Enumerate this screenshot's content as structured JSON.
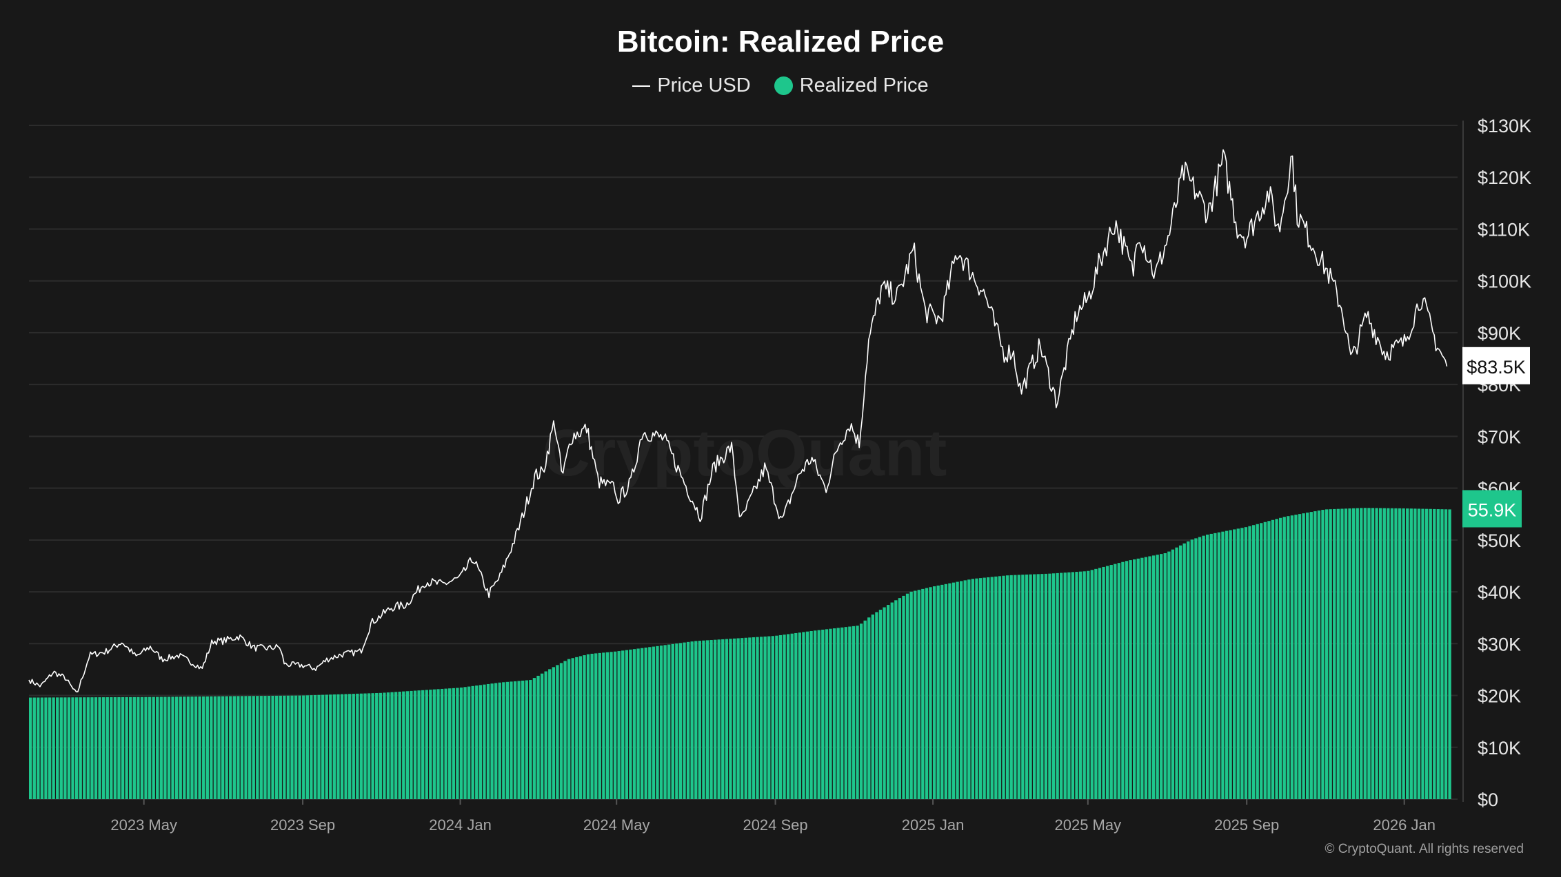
{
  "chart_data": {
    "type": "line",
    "title": "Bitcoin: Realized Price",
    "legend": [
      "Price USD",
      "Realized Price"
    ],
    "legend_position": "top-center",
    "grid": true,
    "y_axis_side": "right",
    "ylim": [
      0,
      130000
    ],
    "y_ticks": [
      "$0",
      "$10K",
      "$20K",
      "$30K",
      "$40K",
      "$50K",
      "$60K",
      "$70K",
      "$80K",
      "$90K",
      "$100K",
      "$110K",
      "$120K",
      "$130K"
    ],
    "x_ticks": [
      "2023 May",
      "2023 Sep",
      "2024 Jan",
      "2024 May",
      "2024 Sep",
      "2025 Jan",
      "2025 May",
      "2025 Sep",
      "2026 Jan"
    ],
    "x_tick_dates": [
      "2023-05-01",
      "2023-09-01",
      "2024-01-01",
      "2024-05-01",
      "2024-09-01",
      "2025-01-01",
      "2025-05-01",
      "2025-09-01",
      "2026-01-01"
    ],
    "x_range": [
      "2023-02-01",
      "2026-02-07"
    ],
    "series": [
      {
        "name": "Price USD",
        "kind": "line",
        "color": "#ffffff",
        "current_label": "$83.5K",
        "points": [
          [
            "2023-02-01",
            23000
          ],
          [
            "2023-02-10",
            21800
          ],
          [
            "2023-02-20",
            24500
          ],
          [
            "2023-03-01",
            23400
          ],
          [
            "2023-03-10",
            20200
          ],
          [
            "2023-03-20",
            27800
          ],
          [
            "2023-04-01",
            28400
          ],
          [
            "2023-04-14",
            30300
          ],
          [
            "2023-04-25",
            27500
          ],
          [
            "2023-05-06",
            29400
          ],
          [
            "2023-05-15",
            27000
          ],
          [
            "2023-05-28",
            27700
          ],
          [
            "2023-06-10",
            26000
          ],
          [
            "2023-06-15",
            25100
          ],
          [
            "2023-06-23",
            30500
          ],
          [
            "2023-07-01",
            30500
          ],
          [
            "2023-07-14",
            31400
          ],
          [
            "2023-07-25",
            29200
          ],
          [
            "2023-08-05",
            29100
          ],
          [
            "2023-08-14",
            29400
          ],
          [
            "2023-08-18",
            26000
          ],
          [
            "2023-09-01",
            25800
          ],
          [
            "2023-09-11",
            25200
          ],
          [
            "2023-09-20",
            27000
          ],
          [
            "2023-10-01",
            27900
          ],
          [
            "2023-10-16",
            28500
          ],
          [
            "2023-10-24",
            34000
          ],
          [
            "2023-11-09",
            37000
          ],
          [
            "2023-11-20",
            37500
          ],
          [
            "2023-12-05",
            42000
          ],
          [
            "2023-12-18",
            41400
          ],
          [
            "2024-01-01",
            42700
          ],
          [
            "2024-01-11",
            46500
          ],
          [
            "2024-01-23",
            39500
          ],
          [
            "2024-02-01",
            43000
          ],
          [
            "2024-02-15",
            52000
          ],
          [
            "2024-02-28",
            62500
          ],
          [
            "2024-03-05",
            63000
          ],
          [
            "2024-03-14",
            73000
          ],
          [
            "2024-03-20",
            62000
          ],
          [
            "2024-03-27",
            70000
          ],
          [
            "2024-04-08",
            71500
          ],
          [
            "2024-04-17",
            61200
          ],
          [
            "2024-04-30",
            60000
          ],
          [
            "2024-05-01",
            57500
          ],
          [
            "2024-05-12",
            61000
          ],
          [
            "2024-05-21",
            71000
          ],
          [
            "2024-06-07",
            69500
          ],
          [
            "2024-06-24",
            60300
          ],
          [
            "2024-07-05",
            54500
          ],
          [
            "2024-07-15",
            64000
          ],
          [
            "2024-07-29",
            68000
          ],
          [
            "2024-08-05",
            53500
          ],
          [
            "2024-08-24",
            64000
          ],
          [
            "2024-09-06",
            53500
          ],
          [
            "2024-09-20",
            63000
          ],
          [
            "2024-09-29",
            65800
          ],
          [
            "2024-10-10",
            59800
          ],
          [
            "2024-10-20",
            68500
          ],
          [
            "2024-10-29",
            72500
          ],
          [
            "2024-11-05",
            68500
          ],
          [
            "2024-11-12",
            88000
          ],
          [
            "2024-11-22",
            98500
          ],
          [
            "2024-12-05",
            97000
          ],
          [
            "2024-12-17",
            106000
          ],
          [
            "2024-12-26",
            94000
          ],
          [
            "2025-01-07",
            92500
          ],
          [
            "2025-01-20",
            106000
          ],
          [
            "2025-02-01",
            101000
          ],
          [
            "2025-02-10",
            97500
          ],
          [
            "2025-02-25",
            86000
          ],
          [
            "2025-03-04",
            86500
          ],
          [
            "2025-03-10",
            78500
          ],
          [
            "2025-03-25",
            87500
          ],
          [
            "2025-04-07",
            76500
          ],
          [
            "2025-04-22",
            93500
          ],
          [
            "2025-05-01",
            96500
          ],
          [
            "2025-05-10",
            103500
          ],
          [
            "2025-05-22",
            111500
          ],
          [
            "2025-06-05",
            101500
          ],
          [
            "2025-06-09",
            110000
          ],
          [
            "2025-06-22",
            101000
          ],
          [
            "2025-07-03",
            109000
          ],
          [
            "2025-07-14",
            121000
          ],
          [
            "2025-07-24",
            117000
          ],
          [
            "2025-08-02",
            113000
          ],
          [
            "2025-08-14",
            123500
          ],
          [
            "2025-08-25",
            110000
          ],
          [
            "2025-09-01",
            108500
          ],
          [
            "2025-09-18",
            117000
          ],
          [
            "2025-09-26",
            109500
          ],
          [
            "2025-10-06",
            124500
          ],
          [
            "2025-10-10",
            113000
          ],
          [
            "2025-10-20",
            108000
          ],
          [
            "2025-11-04",
            101000
          ],
          [
            "2025-11-14",
            94500
          ],
          [
            "2025-11-21",
            84500
          ],
          [
            "2025-12-03",
            93500
          ],
          [
            "2025-12-17",
            86000
          ],
          [
            "2026-01-01",
            88000
          ],
          [
            "2026-01-14",
            97000
          ],
          [
            "2026-01-25",
            88500
          ],
          [
            "2026-02-03",
            83500
          ]
        ]
      },
      {
        "name": "Realized Price",
        "kind": "bars",
        "color": "#1ec68c",
        "current_label": "55.9K",
        "points": [
          [
            "2023-02-01",
            19600
          ],
          [
            "2023-05-01",
            19700
          ],
          [
            "2023-09-01",
            20000
          ],
          [
            "2023-11-01",
            20500
          ],
          [
            "2024-01-01",
            21500
          ],
          [
            "2024-02-01",
            22500
          ],
          [
            "2024-02-25",
            23000
          ],
          [
            "2024-03-10",
            25000
          ],
          [
            "2024-03-25",
            27000
          ],
          [
            "2024-04-10",
            28000
          ],
          [
            "2024-05-01",
            28500
          ],
          [
            "2024-06-01",
            29500
          ],
          [
            "2024-07-01",
            30500
          ],
          [
            "2024-08-01",
            31000
          ],
          [
            "2024-09-01",
            31500
          ],
          [
            "2024-10-01",
            32500
          ],
          [
            "2024-11-05",
            33500
          ],
          [
            "2024-11-15",
            35500
          ],
          [
            "2024-12-01",
            38000
          ],
          [
            "2024-12-15",
            40000
          ],
          [
            "2025-01-01",
            41000
          ],
          [
            "2025-02-01",
            42500
          ],
          [
            "2025-03-01",
            43200
          ],
          [
            "2025-04-01",
            43500
          ],
          [
            "2025-05-01",
            44000
          ],
          [
            "2025-06-01",
            46000
          ],
          [
            "2025-07-01",
            47500
          ],
          [
            "2025-07-20",
            50000
          ],
          [
            "2025-08-01",
            51000
          ],
          [
            "2025-09-01",
            52500
          ],
          [
            "2025-10-01",
            54500
          ],
          [
            "2025-11-01",
            55900
          ],
          [
            "2025-12-01",
            56200
          ],
          [
            "2026-01-01",
            56100
          ],
          [
            "2026-02-07",
            55900
          ]
        ]
      }
    ]
  },
  "watermark": "CryptoQuant",
  "copyright": "© CryptoQuant. All rights reserved"
}
